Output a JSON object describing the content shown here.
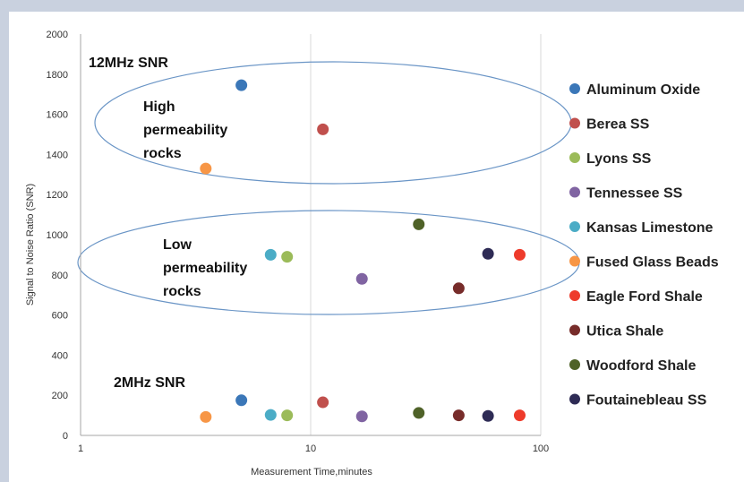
{
  "chart_data": {
    "type": "scatter",
    "title": "",
    "xlabel": "Measurement Time,minutes",
    "ylabel": "Signal to Noise Ratio (SNR)",
    "x_scale": "log",
    "xlim": [
      1,
      100
    ],
    "ylim": [
      0,
      2000
    ],
    "x_ticks": [
      "1",
      "10",
      "100"
    ],
    "y_ticks": [
      "0",
      "200",
      "400",
      "600",
      "800",
      "1000",
      "1200",
      "1400",
      "1600",
      "1800",
      "2000"
    ],
    "grid": "vertical lines at decades",
    "legend_position": "right",
    "annotations": {
      "snr_12mhz": "12MHz SNR",
      "snr_2mhz": "2MHz SNR",
      "high_perm": [
        "High",
        "permeability",
        "rocks"
      ],
      "low_perm": [
        "Low",
        "permeability",
        "rocks"
      ]
    },
    "series": [
      {
        "name": "Aluminum Oxide",
        "color": "#3b77b8",
        "points": [
          [
            5.0,
            1745
          ],
          [
            5.0,
            175
          ]
        ]
      },
      {
        "name": "Berea SS",
        "color": "#c0504d",
        "points": [
          [
            11.3,
            1525
          ],
          [
            11.3,
            165
          ]
        ]
      },
      {
        "name": "Lyons SS",
        "color": "#9bbb59",
        "points": [
          [
            7.9,
            890
          ],
          [
            7.9,
            100
          ]
        ]
      },
      {
        "name": "Tennessee SS",
        "color": "#8064a2",
        "points": [
          [
            16.7,
            780
          ],
          [
            16.7,
            95
          ]
        ]
      },
      {
        "name": "Kansas Limestone",
        "color": "#4bacc6",
        "points": [
          [
            6.7,
            900
          ],
          [
            6.7,
            102
          ]
        ]
      },
      {
        "name": "Fused Glass Beads",
        "color": "#f79646",
        "points": [
          [
            3.5,
            1330
          ],
          [
            3.5,
            92
          ]
        ]
      },
      {
        "name": "Eagle Ford Shale",
        "color": "#ee3b2b",
        "points": [
          [
            81.0,
            900
          ],
          [
            81.0,
            100
          ]
        ]
      },
      {
        "name": "Utica Shale",
        "color": "#772c2a",
        "points": [
          [
            44.0,
            733
          ],
          [
            44.0,
            100
          ]
        ]
      },
      {
        "name": "Woodford Shale",
        "color": "#4f6228",
        "points": [
          [
            29.5,
            1052
          ],
          [
            29.5,
            112
          ]
        ]
      },
      {
        "name": "Foutainebleau SS",
        "color": "#2e2b55",
        "points": [
          [
            59.0,
            905
          ],
          [
            59.0,
            97
          ]
        ]
      }
    ]
  }
}
